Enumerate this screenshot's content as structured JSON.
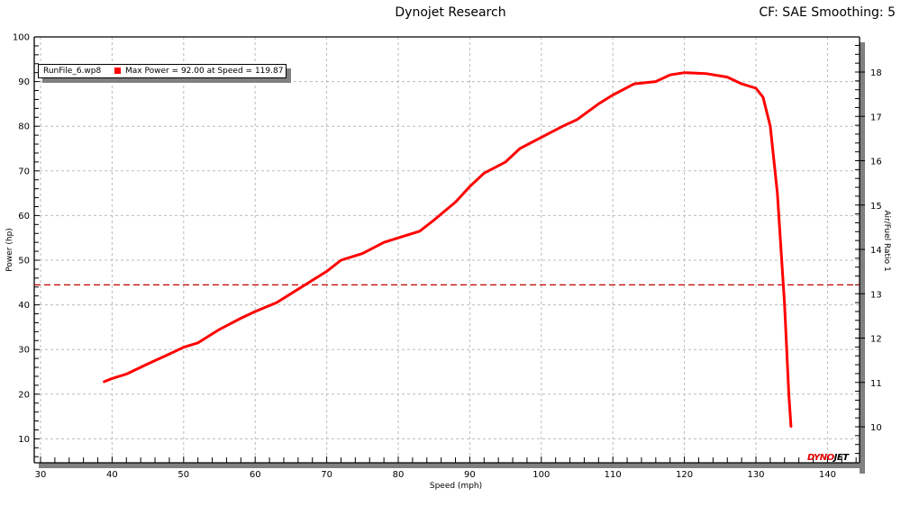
{
  "header": {
    "title": "Dynojet Research",
    "right_text": "CF: SAE Smoothing: 5"
  },
  "legend": {
    "file": "RunFile_6.wp8",
    "info": "Max Power = 92.00 at Speed = 119.87",
    "color": "#ff0000"
  },
  "logo": {
    "part1": "DYNO",
    "part2": "JET"
  },
  "colors": {
    "series": "#ff0000",
    "reference_line": "#c00000",
    "grid": "#bbbbbb",
    "shadow": "#808080"
  },
  "chart_data": {
    "type": "line",
    "title": "Dynojet Research",
    "subtitle": "CF: SAE Smoothing: 5",
    "xlabel": "Speed (mph)",
    "ylabel": "Power (hp)",
    "y2label": "Air/Fuel Ratio 1",
    "xlim": [
      29,
      144
    ],
    "ylim": [
      5,
      100
    ],
    "y2lim": [
      9.3,
      18.8
    ],
    "x_ticks": [
      30,
      40,
      50,
      60,
      70,
      80,
      90,
      100,
      110,
      120,
      130,
      140
    ],
    "y_ticks": [
      10,
      20,
      30,
      40,
      50,
      60,
      70,
      80,
      90,
      100
    ],
    "y2_ticks": [
      10,
      11,
      12,
      13,
      14,
      15,
      16,
      17,
      18
    ],
    "grid": true,
    "legend_position": "top-left",
    "series": [
      {
        "name": "RunFile_6.wp8 Power",
        "axis": "left",
        "x": [
          38.9,
          40,
          42,
          45,
          48,
          50,
          52,
          55,
          58,
          60,
          63,
          65,
          68,
          70,
          72,
          75,
          78,
          80,
          83,
          85,
          88,
          90,
          92,
          95,
          97,
          100,
          103,
          105,
          108,
          110,
          113,
          116,
          118,
          120,
          123,
          126,
          128,
          130,
          131,
          132,
          133,
          134,
          134.6,
          134.9
        ],
        "values": [
          22.8,
          23.5,
          24.5,
          26.8,
          29,
          30.5,
          31.5,
          34.5,
          37,
          38.5,
          40.5,
          42.5,
          45.5,
          47.5,
          50,
          51.5,
          54,
          55,
          56.5,
          59,
          63,
          66.5,
          69.5,
          72,
          75,
          77.5,
          80,
          81.5,
          85,
          87,
          89.5,
          90,
          91.5,
          92,
          91.8,
          91,
          89.5,
          88.5,
          86.5,
          80,
          65,
          40,
          20,
          12.8
        ]
      }
    ],
    "annotations": [
      {
        "type": "hline",
        "axis": "right",
        "value": 13.2,
        "style": "dashed",
        "color": "#c00000"
      },
      {
        "type": "text",
        "text": "Max Power = 92.00 at Speed = 119.87"
      }
    ]
  }
}
